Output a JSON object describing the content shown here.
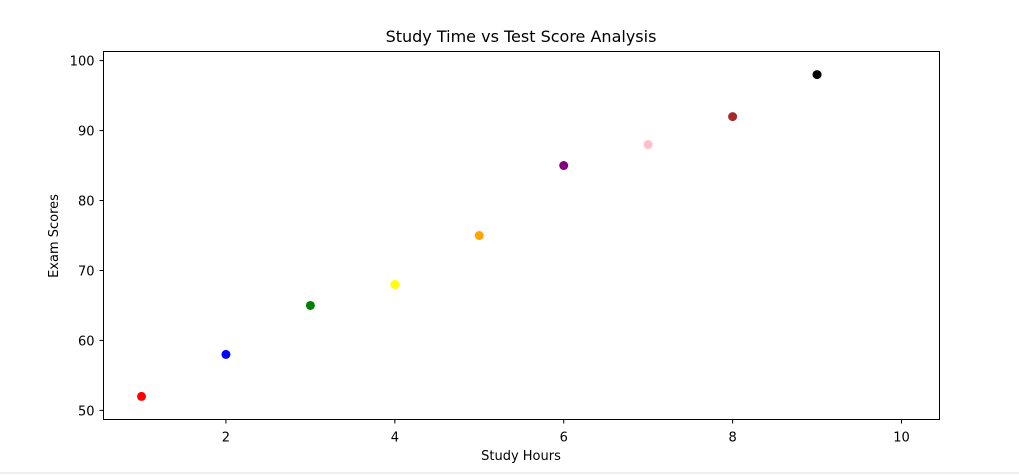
{
  "chart_data": {
    "type": "scatter",
    "title": "Study Time vs Test Score Analysis",
    "xlabel": "Study Hours",
    "ylabel": "Exam Scores",
    "xlim": [
      0.55,
      10.45
    ],
    "ylim": [
      48.7,
      101.3
    ],
    "xticks": [
      2,
      4,
      6,
      8,
      10
    ],
    "yticks": [
      50,
      60,
      70,
      80,
      90,
      100
    ],
    "grid": false,
    "legend": null,
    "points": [
      {
        "x": 1,
        "y": 52,
        "color": "#ff0000"
      },
      {
        "x": 2,
        "y": 58,
        "color": "#0000ff"
      },
      {
        "x": 3,
        "y": 65,
        "color": "#008000"
      },
      {
        "x": 4,
        "y": 68,
        "color": "#ffff00"
      },
      {
        "x": 5,
        "y": 75,
        "color": "#ffa500"
      },
      {
        "x": 6,
        "y": 85,
        "color": "#800080"
      },
      {
        "x": 7,
        "y": 88,
        "color": "#ffc0cb"
      },
      {
        "x": 8,
        "y": 92,
        "color": "#a52a2a"
      },
      {
        "x": 9,
        "y": 98,
        "color": "#000000"
      }
    ]
  }
}
